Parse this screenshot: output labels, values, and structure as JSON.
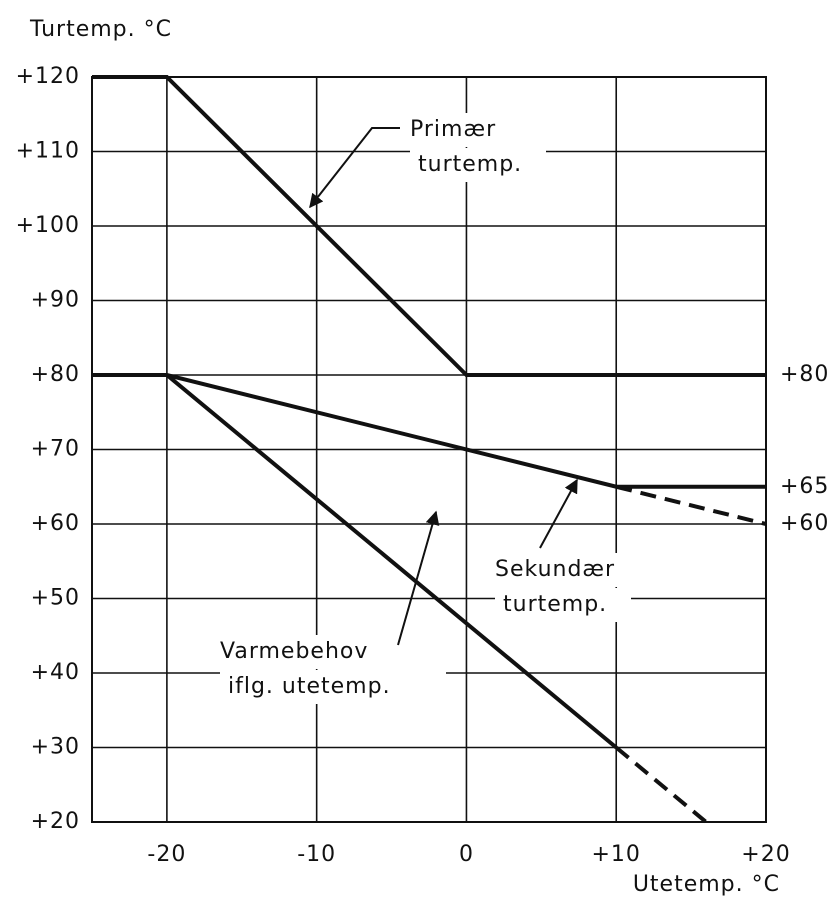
{
  "chart_data": {
    "type": "line",
    "y_axis_title": "Turtemp. °C",
    "x_axis_title": "Utetemp. °C",
    "xlim": [
      -25,
      20
    ],
    "ylim": [
      20,
      120
    ],
    "xticks": [
      {
        "value": -20,
        "label": "-20"
      },
      {
        "value": -10,
        "label": "-10"
      },
      0,
      {
        "value": 10,
        "label": "+10"
      },
      {
        "value": 20,
        "label": "+20"
      }
    ],
    "yticks": [
      {
        "value": 20,
        "label": "+20"
      },
      {
        "value": 30,
        "label": "+30"
      },
      {
        "value": 40,
        "label": "+40"
      },
      {
        "value": 50,
        "label": "+50"
      },
      {
        "value": 60,
        "label": "+60"
      },
      {
        "value": 70,
        "label": "+70"
      },
      {
        "value": 80,
        "label": "+80"
      },
      {
        "value": 90,
        "label": "+90"
      },
      {
        "value": 100,
        "label": "+100"
      },
      {
        "value": 110,
        "label": "+110"
      },
      {
        "value": 120,
        "label": "+120"
      }
    ],
    "grid": true,
    "color": "#111111",
    "series": [
      {
        "label": [
          "Primær",
          "turtemp."
        ],
        "x": [
          -25,
          -20,
          0,
          20
        ],
        "values": [
          120,
          120,
          80,
          80
        ],
        "dashed": false
      },
      {
        "label": [
          "Sekundær",
          "turtemp."
        ],
        "x": [
          -25,
          -20,
          10,
          20
        ],
        "values": [
          80,
          80,
          65,
          65
        ],
        "dashed": false
      },
      {
        "x": [
          10,
          20
        ],
        "values": [
          65,
          60
        ],
        "dashed": true
      },
      {
        "label": [
          "Varmebehov",
          "iflg. utetemp."
        ],
        "x": [
          -20,
          10
        ],
        "values": [
          80,
          30
        ],
        "dashed": false
      },
      {
        "x": [
          10,
          16
        ],
        "values": [
          30,
          20
        ],
        "dashed": true
      }
    ],
    "right_labels": [
      {
        "value": 80,
        "label": "+80"
      },
      {
        "value": 65,
        "label": "+65"
      },
      {
        "value": 60,
        "label": "+60"
      }
    ]
  }
}
